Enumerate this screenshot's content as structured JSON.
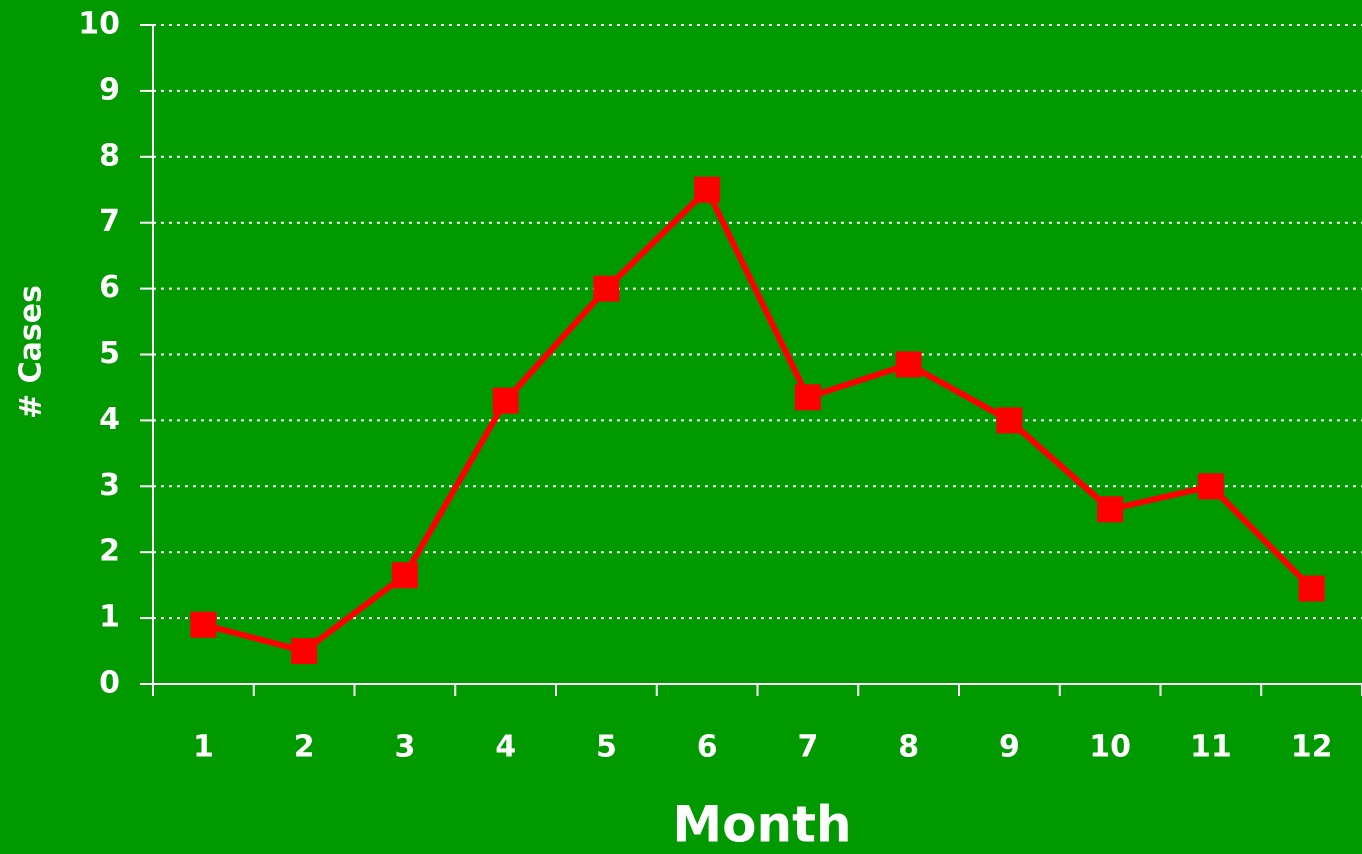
{
  "chart_data": {
    "type": "line",
    "categories": [
      "1",
      "2",
      "3",
      "4",
      "5",
      "6",
      "7",
      "8",
      "9",
      "10",
      "11",
      "12"
    ],
    "series": [
      {
        "name": "Cases",
        "color": "#ff0000",
        "values": [
          0.9,
          0.5,
          1.65,
          4.3,
          6.0,
          7.5,
          4.35,
          4.85,
          4.0,
          2.65,
          3.0,
          1.45
        ]
      }
    ],
    "ylim": [
      0,
      10
    ],
    "yticks": [
      0,
      1,
      2,
      3,
      4,
      5,
      6,
      7,
      8,
      9,
      10
    ],
    "grid": true,
    "xlabel": "Month",
    "ylabel": "# Cases"
  }
}
